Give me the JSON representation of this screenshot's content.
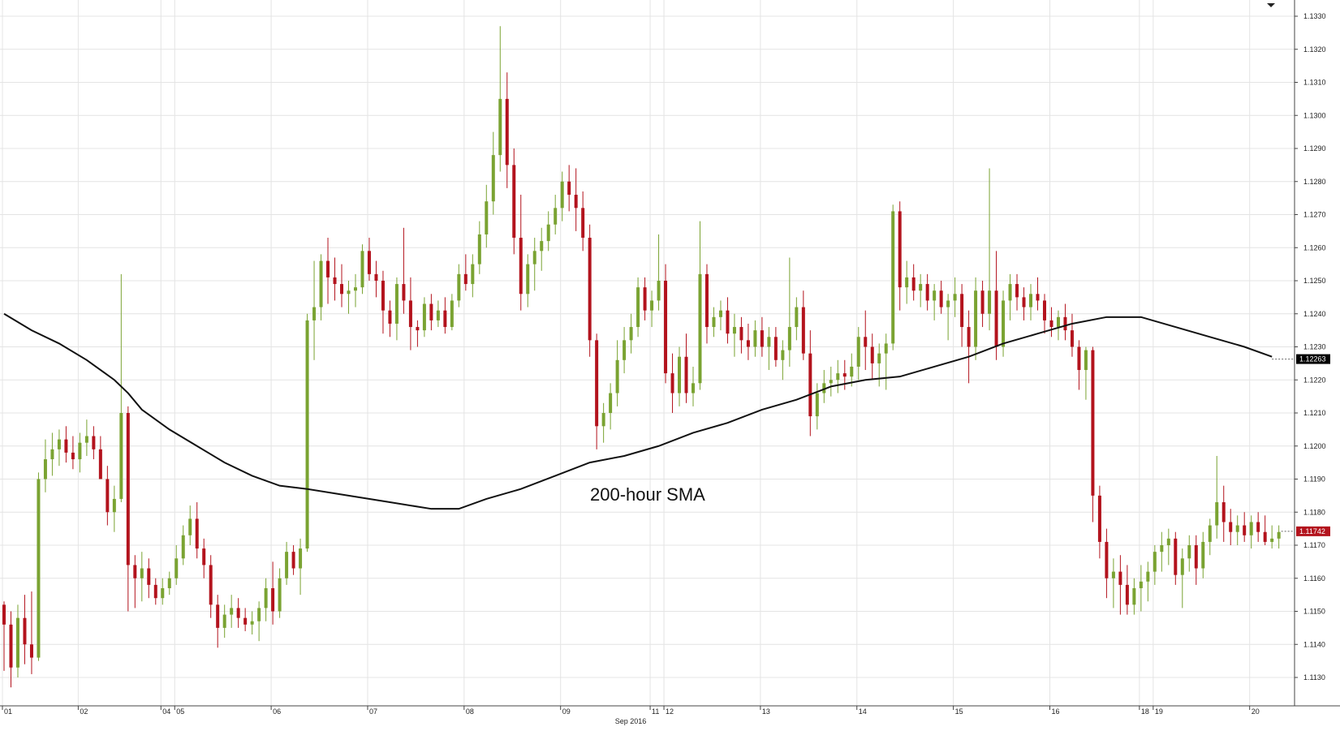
{
  "chart_data": {
    "type": "candlestick",
    "instrument": "",
    "month_label": "Sep 2016",
    "ylim": [
      1.1122,
      1.1334
    ],
    "y_ticks": [
      "1.1330",
      "1.1320",
      "1.1310",
      "1.1300",
      "1.1290",
      "1.1280",
      "1.1270",
      "1.1260",
      "1.1250",
      "1.1240",
      "1.1230",
      "1.1220",
      "1.1210",
      "1.1200",
      "1.1190",
      "1.1180",
      "1.1170",
      "1.1160",
      "1.1150",
      "1.1140",
      "1.1130"
    ],
    "x_ticks": [
      {
        "label": "01",
        "bar": 0
      },
      {
        "label": "02",
        "bar": 11
      },
      {
        "label": "04",
        "bar": 23
      },
      {
        "label": "05",
        "bar": 25
      },
      {
        "label": "06",
        "bar": 39
      },
      {
        "label": "07",
        "bar": 53
      },
      {
        "label": "08",
        "bar": 67
      },
      {
        "label": "09",
        "bar": 81
      },
      {
        "label": "11",
        "bar": 94
      },
      {
        "label": "12",
        "bar": 96
      },
      {
        "label": "13",
        "bar": 110
      },
      {
        "label": "14",
        "bar": 124
      },
      {
        "label": "15",
        "bar": 138
      },
      {
        "label": "16",
        "bar": 152
      },
      {
        "label": "18",
        "bar": 165
      },
      {
        "label": "19",
        "bar": 167
      },
      {
        "label": "20",
        "bar": 181
      }
    ],
    "up_color": "#7aa332",
    "down_color": "#b3131d",
    "sma": {
      "label": "200-hour SMA",
      "last_value_label": "1.12263",
      "color": "#111111",
      "points": [
        [
          0,
          1.124
        ],
        [
          4,
          1.1235
        ],
        [
          8,
          1.1231
        ],
        [
          12,
          1.1226
        ],
        [
          16,
          1.122
        ],
        [
          18,
          1.1216
        ],
        [
          20,
          1.1211
        ],
        [
          24,
          1.1205
        ],
        [
          28,
          1.12
        ],
        [
          32,
          1.1195
        ],
        [
          36,
          1.1191
        ],
        [
          40,
          1.1188
        ],
        [
          44,
          1.1187
        ],
        [
          50,
          1.1185
        ],
        [
          56,
          1.1183
        ],
        [
          62,
          1.1181
        ],
        [
          66,
          1.1181
        ],
        [
          70,
          1.1184
        ],
        [
          75,
          1.1187
        ],
        [
          80,
          1.1191
        ],
        [
          85,
          1.1195
        ],
        [
          90,
          1.1197
        ],
        [
          95,
          1.12
        ],
        [
          100,
          1.1204
        ],
        [
          105,
          1.1207
        ],
        [
          110,
          1.1211
        ],
        [
          115,
          1.1214
        ],
        [
          120,
          1.1218
        ],
        [
          125,
          1.122
        ],
        [
          130,
          1.1221
        ],
        [
          135,
          1.1224
        ],
        [
          140,
          1.1227
        ],
        [
          145,
          1.1231
        ],
        [
          150,
          1.1234
        ],
        [
          155,
          1.1237
        ],
        [
          160,
          1.1239
        ],
        [
          165,
          1.1239
        ],
        [
          170,
          1.1236
        ],
        [
          175,
          1.1233
        ],
        [
          180,
          1.123
        ],
        [
          184,
          1.1227
        ]
      ]
    },
    "last_price_label": "1.11742",
    "last_price": 1.11742,
    "candles": [
      [
        1.1152,
        1.1153,
        1.1132,
        1.1146
      ],
      [
        1.1146,
        1.115,
        1.1127,
        1.1133
      ],
      [
        1.1133,
        1.1152,
        1.113,
        1.1148
      ],
      [
        1.1148,
        1.1155,
        1.1134,
        1.114
      ],
      [
        1.114,
        1.1156,
        1.1131,
        1.1136
      ],
      [
        1.1136,
        1.1192,
        1.1135,
        1.119
      ],
      [
        1.119,
        1.1202,
        1.1186,
        1.1196
      ],
      [
        1.1196,
        1.1204,
        1.1191,
        1.1199
      ],
      [
        1.1199,
        1.1205,
        1.1194,
        1.1202
      ],
      [
        1.1202,
        1.1206,
        1.1195,
        1.1198
      ],
      [
        1.1198,
        1.1203,
        1.1193,
        1.1196
      ],
      [
        1.1196,
        1.1204,
        1.1192,
        1.1201
      ],
      [
        1.1201,
        1.1208,
        1.1197,
        1.1203
      ],
      [
        1.1203,
        1.1206,
        1.1196,
        1.1199
      ],
      [
        1.1199,
        1.1203,
        1.1192,
        1.119
      ],
      [
        1.119,
        1.1194,
        1.1176,
        1.118
      ],
      [
        1.118,
        1.1188,
        1.1174,
        1.1184
      ],
      [
        1.1184,
        1.1252,
        1.1183,
        1.121
      ],
      [
        1.121,
        1.1212,
        1.115,
        1.1164
      ],
      [
        1.1164,
        1.1167,
        1.1151,
        1.116
      ],
      [
        1.116,
        1.1168,
        1.1153,
        1.1163
      ],
      [
        1.1163,
        1.1166,
        1.1154,
        1.1158
      ],
      [
        1.1158,
        1.116,
        1.1152,
        1.1154
      ],
      [
        1.1154,
        1.116,
        1.1152,
        1.1157
      ],
      [
        1.1157,
        1.1162,
        1.1155,
        1.116
      ],
      [
        1.116,
        1.117,
        1.1158,
        1.1166
      ],
      [
        1.1166,
        1.1176,
        1.1164,
        1.1173
      ],
      [
        1.1173,
        1.1182,
        1.117,
        1.1178
      ],
      [
        1.1178,
        1.1183,
        1.1166,
        1.1169
      ],
      [
        1.1169,
        1.1172,
        1.116,
        1.1164
      ],
      [
        1.1164,
        1.1167,
        1.1148,
        1.1152
      ],
      [
        1.1152,
        1.1155,
        1.1139,
        1.1145
      ],
      [
        1.1145,
        1.1152,
        1.1142,
        1.1149
      ],
      [
        1.1149,
        1.1155,
        1.1145,
        1.1151
      ],
      [
        1.1151,
        1.1154,
        1.1145,
        1.1148
      ],
      [
        1.1148,
        1.1151,
        1.1144,
        1.1146
      ],
      [
        1.1146,
        1.115,
        1.1143,
        1.1147
      ],
      [
        1.1147,
        1.1153,
        1.1141,
        1.1151
      ],
      [
        1.1151,
        1.116,
        1.1147,
        1.1157
      ],
      [
        1.1157,
        1.1165,
        1.1146,
        1.115
      ],
      [
        1.115,
        1.1163,
        1.1148,
        1.116
      ],
      [
        1.116,
        1.1171,
        1.1158,
        1.1168
      ],
      [
        1.1168,
        1.117,
        1.1161,
        1.1163
      ],
      [
        1.1163,
        1.1172,
        1.1155,
        1.1169
      ],
      [
        1.1169,
        1.124,
        1.1168,
        1.1238
      ],
      [
        1.1238,
        1.1256,
        1.1226,
        1.1242
      ],
      [
        1.1242,
        1.1258,
        1.1238,
        1.1256
      ],
      [
        1.1256,
        1.1263,
        1.1243,
        1.1251
      ],
      [
        1.1251,
        1.1257,
        1.1244,
        1.1249
      ],
      [
        1.1249,
        1.1255,
        1.1242,
        1.1246
      ],
      [
        1.1246,
        1.125,
        1.124,
        1.1247
      ],
      [
        1.1247,
        1.1252,
        1.1242,
        1.1248
      ],
      [
        1.1248,
        1.1261,
        1.1246,
        1.1259
      ],
      [
        1.1259,
        1.1263,
        1.125,
        1.1252
      ],
      [
        1.1252,
        1.1256,
        1.1245,
        1.125
      ],
      [
        1.125,
        1.1253,
        1.1234,
        1.1241
      ],
      [
        1.1241,
        1.1244,
        1.1233,
        1.1237
      ],
      [
        1.1237,
        1.1251,
        1.1232,
        1.1249
      ],
      [
        1.1249,
        1.1266,
        1.124,
        1.1244
      ],
      [
        1.1244,
        1.1251,
        1.1229,
        1.1236
      ],
      [
        1.1236,
        1.1238,
        1.123,
        1.1235
      ],
      [
        1.1235,
        1.1245,
        1.1233,
        1.1243
      ],
      [
        1.1243,
        1.1246,
        1.1235,
        1.1238
      ],
      [
        1.1238,
        1.1244,
        1.1236,
        1.1241
      ],
      [
        1.1241,
        1.1245,
        1.1234,
        1.1236
      ],
      [
        1.1236,
        1.1246,
        1.1235,
        1.1244
      ],
      [
        1.1244,
        1.1255,
        1.1242,
        1.1252
      ],
      [
        1.1252,
        1.1258,
        1.1247,
        1.1249
      ],
      [
        1.1249,
        1.1258,
        1.1245,
        1.1255
      ],
      [
        1.1255,
        1.1268,
        1.1252,
        1.1264
      ],
      [
        1.1264,
        1.1279,
        1.126,
        1.1274
      ],
      [
        1.1274,
        1.1295,
        1.127,
        1.1288
      ],
      [
        1.1288,
        1.1327,
        1.1283,
        1.1305
      ],
      [
        1.1305,
        1.1313,
        1.1278,
        1.1285
      ],
      [
        1.1285,
        1.129,
        1.1258,
        1.1263
      ],
      [
        1.1263,
        1.1276,
        1.1241,
        1.1246
      ],
      [
        1.1246,
        1.1258,
        1.1242,
        1.1255
      ],
      [
        1.1255,
        1.1263,
        1.1247,
        1.1259
      ],
      [
        1.1259,
        1.1266,
        1.1253,
        1.1262
      ],
      [
        1.1262,
        1.1271,
        1.1259,
        1.1267
      ],
      [
        1.1267,
        1.1276,
        1.1264,
        1.1272
      ],
      [
        1.1272,
        1.1283,
        1.1268,
        1.128
      ],
      [
        1.128,
        1.1285,
        1.1271,
        1.1276
      ],
      [
        1.1276,
        1.1284,
        1.1265,
        1.1272
      ],
      [
        1.1272,
        1.1277,
        1.1259,
        1.1263
      ],
      [
        1.1263,
        1.1267,
        1.1227,
        1.1232
      ],
      [
        1.1232,
        1.1234,
        1.1199,
        1.1206
      ],
      [
        1.1206,
        1.1213,
        1.1201,
        1.121
      ],
      [
        1.121,
        1.1219,
        1.1205,
        1.1216
      ],
      [
        1.1216,
        1.1232,
        1.1212,
        1.1226
      ],
      [
        1.1226,
        1.1236,
        1.1222,
        1.1232
      ],
      [
        1.1232,
        1.124,
        1.1228,
        1.1236
      ],
      [
        1.1236,
        1.1251,
        1.1233,
        1.1248
      ],
      [
        1.1248,
        1.1251,
        1.1238,
        1.1241
      ],
      [
        1.1241,
        1.1247,
        1.1236,
        1.1244
      ],
      [
        1.1244,
        1.1264,
        1.1241,
        1.125
      ],
      [
        1.125,
        1.1255,
        1.1219,
        1.1222
      ],
      [
        1.1222,
        1.1228,
        1.121,
        1.1216
      ],
      [
        1.1216,
        1.123,
        1.1212,
        1.1227
      ],
      [
        1.1227,
        1.1234,
        1.1213,
        1.1216
      ],
      [
        1.1216,
        1.1224,
        1.1212,
        1.1219
      ],
      [
        1.1219,
        1.1268,
        1.1217,
        1.1252
      ],
      [
        1.1252,
        1.1255,
        1.1231,
        1.1236
      ],
      [
        1.1236,
        1.1242,
        1.1233,
        1.1239
      ],
      [
        1.1239,
        1.1244,
        1.1235,
        1.1241
      ],
      [
        1.1241,
        1.1245,
        1.1231,
        1.1234
      ],
      [
        1.1234,
        1.124,
        1.1227,
        1.1236
      ],
      [
        1.1236,
        1.1239,
        1.1228,
        1.1232
      ],
      [
        1.1232,
        1.1237,
        1.1226,
        1.123
      ],
      [
        1.123,
        1.1238,
        1.1227,
        1.1235
      ],
      [
        1.1235,
        1.1239,
        1.1227,
        1.123
      ],
      [
        1.123,
        1.1236,
        1.1223,
        1.1233
      ],
      [
        1.1233,
        1.1236,
        1.1224,
        1.1226
      ],
      [
        1.1226,
        1.1232,
        1.122,
        1.1229
      ],
      [
        1.1229,
        1.1257,
        1.1224,
        1.1236
      ],
      [
        1.1236,
        1.1245,
        1.1232,
        1.1242
      ],
      [
        1.1242,
        1.1247,
        1.1226,
        1.1228
      ],
      [
        1.1228,
        1.1235,
        1.1203,
        1.1209
      ],
      [
        1.1209,
        1.1219,
        1.1205,
        1.1216
      ],
      [
        1.1216,
        1.1223,
        1.1213,
        1.1219
      ],
      [
        1.1219,
        1.1224,
        1.1215,
        1.122
      ],
      [
        1.122,
        1.1226,
        1.1216,
        1.1222
      ],
      [
        1.1222,
        1.1226,
        1.1217,
        1.1221
      ],
      [
        1.1221,
        1.1228,
        1.1218,
        1.1224
      ],
      [
        1.1224,
        1.1236,
        1.122,
        1.1233
      ],
      [
        1.1233,
        1.1241,
        1.1223,
        1.123
      ],
      [
        1.123,
        1.1234,
        1.122,
        1.1225
      ],
      [
        1.1225,
        1.1231,
        1.1218,
        1.1228
      ],
      [
        1.1228,
        1.1234,
        1.1217,
        1.1231
      ],
      [
        1.1231,
        1.1273,
        1.1229,
        1.1271
      ],
      [
        1.1271,
        1.1274,
        1.1241,
        1.1248
      ],
      [
        1.1248,
        1.1256,
        1.1243,
        1.1251
      ],
      [
        1.1251,
        1.1255,
        1.1244,
        1.1247
      ],
      [
        1.1247,
        1.1252,
        1.1242,
        1.1249
      ],
      [
        1.1249,
        1.1252,
        1.1241,
        1.1244
      ],
      [
        1.1244,
        1.1249,
        1.1238,
        1.1247
      ],
      [
        1.1247,
        1.125,
        1.124,
        1.1242
      ],
      [
        1.1242,
        1.1246,
        1.1232,
        1.1244
      ],
      [
        1.1244,
        1.1251,
        1.1239,
        1.1246
      ],
      [
        1.1246,
        1.1249,
        1.123,
        1.1236
      ],
      [
        1.1236,
        1.1241,
        1.1219,
        1.123
      ],
      [
        1.123,
        1.1251,
        1.1226,
        1.1247
      ],
      [
        1.1247,
        1.125,
        1.1236,
        1.124
      ],
      [
        1.124,
        1.1284,
        1.1235,
        1.1247
      ],
      [
        1.1247,
        1.1259,
        1.1226,
        1.123
      ],
      [
        1.123,
        1.1247,
        1.1227,
        1.1244
      ],
      [
        1.1244,
        1.1252,
        1.1238,
        1.1249
      ],
      [
        1.1249,
        1.1252,
        1.1241,
        1.1245
      ],
      [
        1.1245,
        1.1248,
        1.1238,
        1.1242
      ],
      [
        1.1242,
        1.1249,
        1.1238,
        1.1246
      ],
      [
        1.1246,
        1.1251,
        1.1241,
        1.1244
      ],
      [
        1.1244,
        1.1246,
        1.1234,
        1.1238
      ],
      [
        1.1238,
        1.1242,
        1.1233,
        1.1236
      ],
      [
        1.1236,
        1.1241,
        1.1232,
        1.1239
      ],
      [
        1.1239,
        1.1243,
        1.1232,
        1.1235
      ],
      [
        1.1235,
        1.124,
        1.1227,
        1.123
      ],
      [
        1.123,
        1.1232,
        1.1217,
        1.1223
      ],
      [
        1.1223,
        1.123,
        1.1214,
        1.1229
      ],
      [
        1.1229,
        1.123,
        1.1177,
        1.1185
      ],
      [
        1.1185,
        1.1188,
        1.1166,
        1.1171
      ],
      [
        1.1171,
        1.1175,
        1.1154,
        1.116
      ],
      [
        1.116,
        1.1166,
        1.1151,
        1.1162
      ],
      [
        1.1162,
        1.1167,
        1.1149,
        1.1158
      ],
      [
        1.1158,
        1.1164,
        1.1149,
        1.1152
      ],
      [
        1.1152,
        1.116,
        1.1149,
        1.1157
      ],
      [
        1.1157,
        1.1164,
        1.115,
        1.1159
      ],
      [
        1.1159,
        1.1165,
        1.1153,
        1.1162
      ],
      [
        1.1162,
        1.117,
        1.1158,
        1.1168
      ],
      [
        1.1168,
        1.1174,
        1.1162,
        1.117
      ],
      [
        1.117,
        1.1175,
        1.1164,
        1.1172
      ],
      [
        1.1172,
        1.1174,
        1.1158,
        1.1161
      ],
      [
        1.1161,
        1.1169,
        1.1151,
        1.1166
      ],
      [
        1.1166,
        1.1173,
        1.1162,
        1.117
      ],
      [
        1.117,
        1.1173,
        1.1158,
        1.1163
      ],
      [
        1.1163,
        1.1174,
        1.116,
        1.1171
      ],
      [
        1.1171,
        1.1178,
        1.1167,
        1.1176
      ],
      [
        1.1176,
        1.1197,
        1.1172,
        1.1183
      ],
      [
        1.1183,
        1.1188,
        1.1171,
        1.1177
      ],
      [
        1.1177,
        1.1181,
        1.117,
        1.1174
      ],
      [
        1.1174,
        1.1179,
        1.117,
        1.1176
      ],
      [
        1.1176,
        1.118,
        1.1171,
        1.1173
      ],
      [
        1.1173,
        1.1179,
        1.1169,
        1.1177
      ],
      [
        1.1177,
        1.118,
        1.1171,
        1.1174
      ],
      [
        1.1174,
        1.1179,
        1.117,
        1.1171
      ],
      [
        1.1171,
        1.1176,
        1.1169,
        1.1172
      ],
      [
        1.1172,
        1.1176,
        1.1169,
        1.1174
      ]
    ]
  }
}
